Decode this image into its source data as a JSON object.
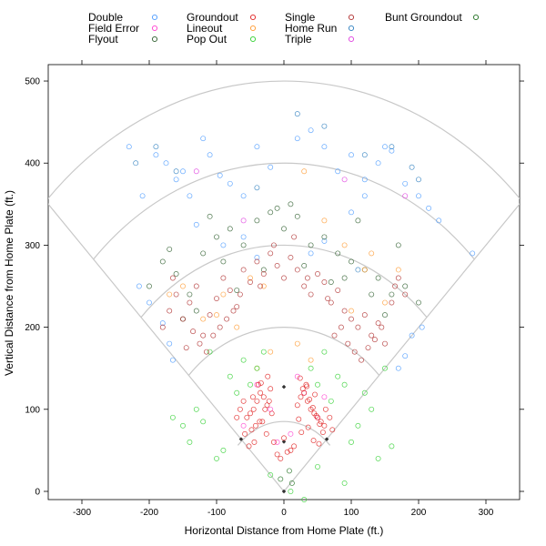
{
  "chart_data": {
    "type": "scatter",
    "xlabel": "Horizontal Distance from Home Plate (ft.)",
    "ylabel": "Vertical Distance from Home Plate (ft.)",
    "xlim": [
      -350,
      350
    ],
    "ylim": [
      -10,
      520
    ],
    "x_ticks": [
      -300,
      -200,
      -100,
      0,
      100,
      200,
      300
    ],
    "y_ticks": [
      0,
      100,
      200,
      300,
      400,
      500
    ],
    "grid": false,
    "legend_position": "top",
    "field_outline": {
      "foul_lines_to": 500,
      "arcs_radius": [
        200,
        300,
        400,
        500
      ]
    },
    "series": [
      {
        "name": "Double",
        "color": "#4c9bff",
        "x": [
          -230,
          -210,
          -190,
          -175,
          -160,
          -150,
          -140,
          -120,
          -110,
          -95,
          -80,
          -60,
          -40,
          -20,
          20,
          40,
          60,
          80,
          100,
          120,
          140,
          160,
          180,
          200,
          215,
          230,
          -215,
          -200,
          -180,
          -170,
          -165,
          170,
          180,
          190,
          205,
          280,
          150,
          120,
          100,
          60,
          40,
          -40,
          -60,
          -90,
          -130
        ],
        "y": [
          420,
          360,
          410,
          400,
          380,
          390,
          360,
          430,
          410,
          385,
          375,
          360,
          420,
          395,
          430,
          440,
          420,
          390,
          410,
          360,
          400,
          415,
          375,
          360,
          345,
          330,
          250,
          230,
          205,
          180,
          160,
          150,
          165,
          190,
          200,
          290,
          420,
          380,
          340,
          305,
          290,
          285,
          310,
          300,
          325
        ]
      },
      {
        "name": "Field Error",
        "color": "#ff3fd0",
        "x": [
          -60,
          -40,
          -20,
          10,
          30,
          50,
          60,
          -10,
          20
        ],
        "y": [
          80,
          130,
          100,
          70,
          120,
          90,
          115,
          60,
          140
        ]
      },
      {
        "name": "Flyout",
        "color": "#2f5f2f",
        "x": [
          -200,
          -180,
          -160,
          -140,
          -120,
          -100,
          -80,
          -60,
          -40,
          -20,
          0,
          20,
          40,
          60,
          80,
          100,
          120,
          140,
          160,
          180,
          200,
          -150,
          -130,
          -90,
          90,
          130,
          150,
          -70,
          70,
          -30,
          30,
          10,
          -10,
          110,
          -110,
          170,
          -170
        ],
        "y": [
          250,
          280,
          265,
          240,
          290,
          310,
          320,
          300,
          330,
          340,
          320,
          335,
          300,
          310,
          290,
          280,
          270,
          260,
          240,
          250,
          230,
          210,
          220,
          280,
          260,
          240,
          215,
          245,
          255,
          270,
          275,
          350,
          345,
          330,
          335,
          300,
          295
        ]
      },
      {
        "name": "Groundout",
        "color": "#e02020",
        "x": [
          -40,
          -35,
          -30,
          -25,
          -20,
          -45,
          -50,
          -55,
          -38,
          -32,
          -28,
          -22,
          -18,
          -42,
          -48,
          20,
          25,
          30,
          35,
          40,
          45,
          50,
          55,
          60,
          28,
          33,
          38,
          43,
          48,
          53,
          58,
          22,
          -60,
          -65,
          -70,
          -58,
          62,
          68,
          72,
          -15,
          15,
          -10,
          10,
          -5,
          5,
          0,
          -26,
          26,
          -36,
          36,
          -44,
          44,
          -52,
          52,
          -24,
          24,
          -34,
          34,
          -46,
          46
        ],
        "y": [
          110,
          120,
          115,
          105,
          125,
          100,
          95,
          90,
          130,
          85,
          100,
          110,
          95,
          80,
          75,
          105,
          115,
          120,
          110,
          100,
          95,
          90,
          85,
          80,
          125,
          130,
          112,
          102,
          92,
          82,
          72,
          88,
          110,
          100,
          90,
          70,
          100,
          90,
          75,
          60,
          55,
          45,
          50,
          40,
          48,
          65,
          70,
          72,
          85,
          78,
          60,
          62,
          55,
          58,
          140,
          138,
          132,
          128,
          115,
          118
        ]
      },
      {
        "name": "Lineout",
        "color": "#ff9a30",
        "x": [
          -120,
          -90,
          -70,
          -50,
          -30,
          30,
          60,
          90,
          120,
          150,
          -150,
          170,
          -170,
          20,
          -20,
          40,
          -40,
          100,
          -100,
          130
        ],
        "y": [
          210,
          240,
          200,
          260,
          250,
          390,
          330,
          300,
          270,
          230,
          250,
          270,
          240,
          180,
          170,
          160,
          150,
          220,
          215,
          290
        ]
      },
      {
        "name": "Pop Out",
        "color": "#30d030",
        "x": [
          -150,
          -140,
          -130,
          -120,
          -100,
          -80,
          -70,
          -60,
          -50,
          -40,
          -30,
          40,
          50,
          60,
          70,
          80,
          90,
          100,
          110,
          120,
          130,
          140,
          -90,
          30,
          -20,
          10,
          50,
          90,
          -110,
          150,
          -165,
          160
        ],
        "y": [
          80,
          60,
          100,
          85,
          40,
          140,
          120,
          160,
          130,
          150,
          170,
          150,
          130,
          170,
          110,
          140,
          130,
          60,
          80,
          120,
          100,
          40,
          50,
          -10,
          20,
          0,
          30,
          10,
          170,
          150,
          90,
          55
        ]
      },
      {
        "name": "Single",
        "color": "#b03030",
        "x": [
          -180,
          -170,
          -160,
          -150,
          -140,
          -130,
          -120,
          -110,
          -100,
          -90,
          -80,
          -70,
          -60,
          -50,
          -40,
          -30,
          -20,
          -10,
          0,
          10,
          20,
          30,
          40,
          50,
          60,
          70,
          80,
          90,
          100,
          110,
          120,
          130,
          140,
          150,
          160,
          170,
          180,
          -125,
          -115,
          -105,
          -95,
          -85,
          -75,
          75,
          85,
          95,
          105,
          115,
          125,
          -135,
          135,
          -145,
          145,
          -65,
          65,
          -35,
          35,
          -15,
          15,
          -165,
          165
        ],
        "y": [
          200,
          220,
          240,
          210,
          230,
          250,
          190,
          215,
          235,
          260,
          245,
          225,
          270,
          255,
          280,
          265,
          290,
          275,
          260,
          285,
          270,
          250,
          240,
          265,
          255,
          230,
          245,
          220,
          210,
          200,
          215,
          190,
          205,
          180,
          230,
          260,
          240,
          180,
          170,
          190,
          200,
          210,
          220,
          190,
          200,
          180,
          170,
          160,
          175,
          195,
          185,
          175,
          200,
          240,
          235,
          250,
          260,
          300,
          310,
          260,
          250
        ]
      },
      {
        "name": "Home Run",
        "color": "#3080c0",
        "x": [
          -220,
          -190,
          -160,
          20,
          60,
          120,
          160,
          190,
          200,
          110,
          -40
        ],
        "y": [
          400,
          420,
          390,
          460,
          445,
          410,
          420,
          395,
          380,
          270,
          370
        ]
      },
      {
        "name": "Triple",
        "color": "#e040e0",
        "x": [
          -130,
          180,
          -60,
          90
        ],
        "y": [
          390,
          360,
          330,
          380
        ]
      },
      {
        "name": "Bunt Groundout",
        "color": "#207020",
        "x": [
          -5,
          8,
          12
        ],
        "y": [
          15,
          25,
          10
        ]
      }
    ]
  }
}
